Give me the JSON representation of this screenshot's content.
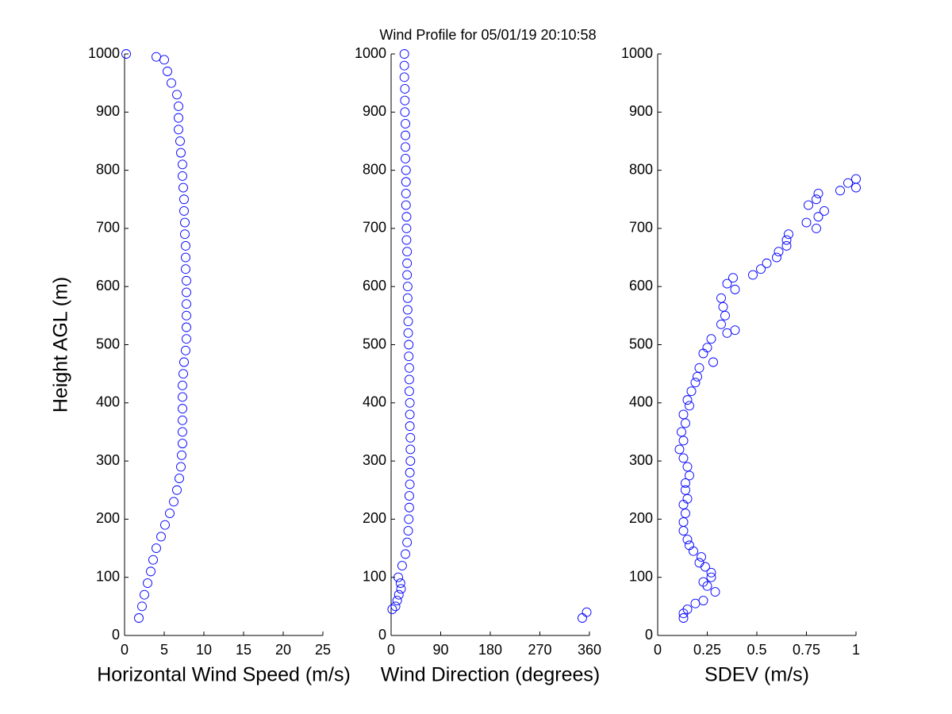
{
  "title": "Wind Profile for  05/01/19 20:10:58",
  "chart_data": [
    {
      "type": "scatter",
      "xlabel": "Horizontal Wind Speed (m/s)",
      "ylabel": "Height AGL (m)",
      "color": "#0000ff",
      "xlim": [
        0,
        25
      ],
      "xticks": [
        0,
        5,
        10,
        15,
        20,
        25
      ],
      "ylim": [
        0,
        1000
      ],
      "yticks": [
        0,
        100,
        200,
        300,
        400,
        500,
        600,
        700,
        800,
        900,
        1000
      ],
      "x": [
        1.8,
        2.2,
        2.5,
        2.9,
        3.3,
        3.6,
        4.0,
        4.6,
        5.1,
        5.7,
        6.2,
        6.6,
        6.9,
        7.1,
        7.2,
        7.3,
        7.3,
        7.3,
        7.3,
        7.3,
        7.3,
        7.4,
        7.5,
        7.7,
        7.8,
        7.8,
        7.8,
        7.8,
        7.8,
        7.8,
        7.7,
        7.7,
        7.7,
        7.6,
        7.6,
        7.5,
        7.5,
        7.4,
        7.3,
        7.3,
        7.1,
        7.0,
        6.8,
        6.8,
        6.8,
        6.6,
        5.9,
        5.4,
        5.0,
        4.0,
        0.2
      ],
      "values": [
        30,
        50,
        70,
        90,
        110,
        130,
        150,
        170,
        190,
        210,
        230,
        250,
        270,
        290,
        310,
        330,
        350,
        370,
        390,
        410,
        430,
        450,
        470,
        490,
        510,
        530,
        550,
        570,
        590,
        610,
        630,
        650,
        670,
        690,
        710,
        730,
        750,
        770,
        790,
        810,
        830,
        850,
        870,
        890,
        910,
        930,
        950,
        970,
        990,
        995,
        1000
      ]
    },
    {
      "type": "scatter",
      "xlabel": "Wind Direction (degrees)",
      "color": "#0000ff",
      "xlim": [
        0,
        360
      ],
      "xticks": [
        0,
        90,
        180,
        270,
        360
      ],
      "ylim": [
        0,
        1000
      ],
      "yticks": [
        0,
        100,
        200,
        300,
        400,
        500,
        600,
        700,
        800,
        900,
        1000
      ],
      "x": [
        347,
        355,
        2,
        8,
        11,
        14,
        18,
        17,
        13,
        20,
        26,
        29,
        31,
        32,
        33,
        33,
        34,
        34,
        35,
        35,
        35,
        34,
        34,
        34,
        33,
        33,
        33,
        32,
        32,
        31,
        31,
        30,
        30,
        30,
        29,
        29,
        29,
        28,
        28,
        28,
        27,
        27,
        27,
        27,
        26,
        26,
        26,
        26,
        25,
        25,
        25,
        24,
        24,
        24
      ],
      "values": [
        30,
        40,
        45,
        50,
        60,
        70,
        80,
        90,
        100,
        120,
        140,
        160,
        180,
        200,
        220,
        240,
        260,
        280,
        300,
        320,
        340,
        360,
        380,
        400,
        420,
        440,
        460,
        480,
        500,
        520,
        540,
        560,
        580,
        600,
        620,
        640,
        660,
        680,
        700,
        720,
        740,
        760,
        780,
        800,
        820,
        840,
        860,
        880,
        900,
        920,
        940,
        960,
        980,
        1000
      ]
    },
    {
      "type": "scatter",
      "xlabel": "SDEV  (m/s)",
      "color": "#0000ff",
      "xlim": [
        0,
        1
      ],
      "xticks": [
        0,
        0.25,
        0.5,
        0.75,
        1
      ],
      "ylim": [
        0,
        1000
      ],
      "yticks": [
        0,
        100,
        200,
        300,
        400,
        500,
        600,
        700,
        800,
        900,
        1000
      ],
      "x": [
        0.13,
        0.13,
        0.15,
        0.19,
        0.23,
        0.29,
        0.25,
        0.23,
        0.27,
        0.27,
        0.24,
        0.21,
        0.22,
        0.18,
        0.16,
        0.15,
        0.13,
        0.13,
        0.14,
        0.13,
        0.15,
        0.14,
        0.14,
        0.16,
        0.15,
        0.13,
        0.11,
        0.13,
        0.12,
        0.14,
        0.13,
        0.16,
        0.15,
        0.17,
        0.19,
        0.2,
        0.21,
        0.28,
        0.23,
        0.25,
        0.27,
        0.35,
        0.39,
        0.32,
        0.34,
        0.33,
        0.32,
        0.39,
        0.35,
        0.38,
        0.48,
        0.52,
        0.55,
        0.6,
        0.61,
        0.65,
        0.65,
        0.66,
        0.8,
        0.75,
        0.81,
        0.84,
        0.76,
        0.8,
        0.81,
        0.92,
        1,
        0.96,
        1
      ],
      "values": [
        30,
        38,
        45,
        55,
        60,
        75,
        85,
        92,
        100,
        108,
        118,
        125,
        135,
        145,
        155,
        165,
        180,
        195,
        210,
        225,
        235,
        250,
        262,
        275,
        290,
        305,
        320,
        335,
        350,
        365,
        380,
        395,
        405,
        420,
        435,
        445,
        460,
        470,
        485,
        495,
        510,
        520,
        525,
        535,
        550,
        565,
        580,
        595,
        605,
        615,
        620,
        630,
        640,
        650,
        660,
        670,
        680,
        690,
        700,
        710,
        720,
        730,
        740,
        750,
        760,
        765,
        770,
        778,
        785
      ]
    }
  ]
}
